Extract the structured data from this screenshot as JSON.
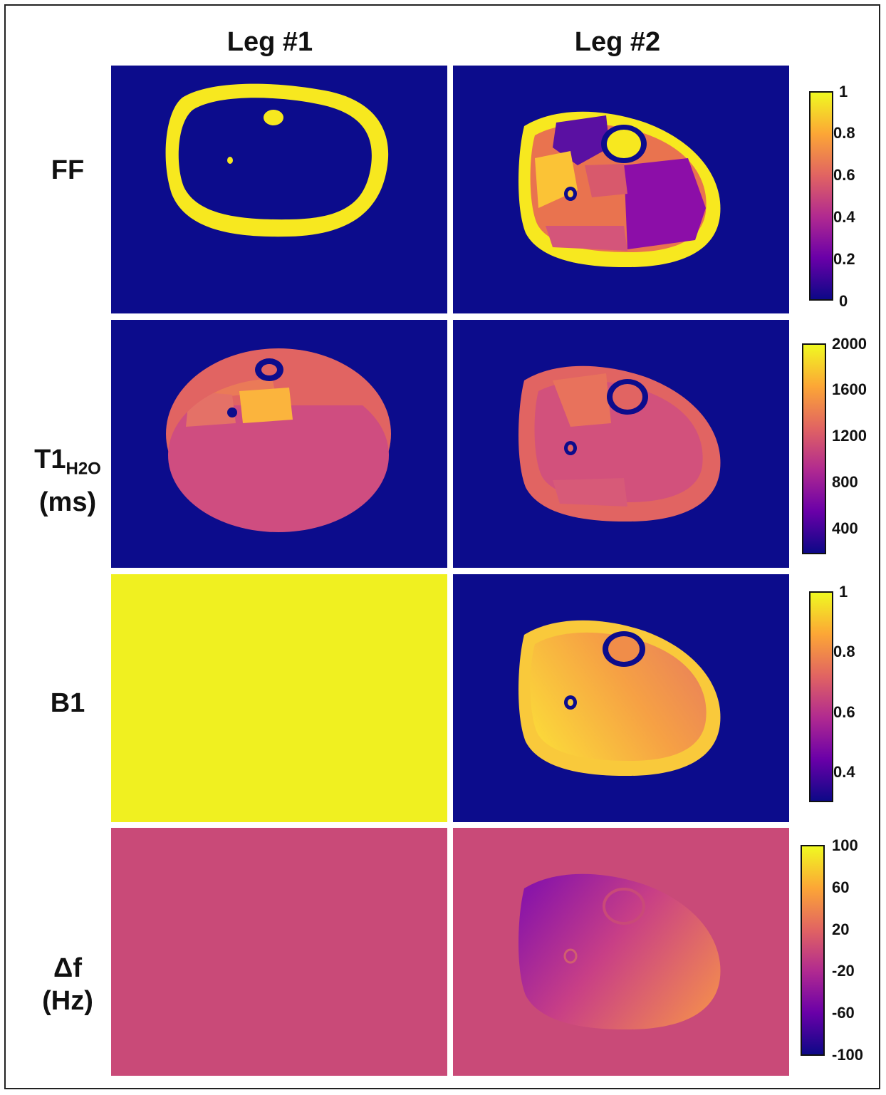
{
  "columns": [
    "Leg #1",
    "Leg #2"
  ],
  "rows": {
    "ff": {
      "label": "FF"
    },
    "t1": {
      "label_main": "T1",
      "label_sub": "H2O",
      "label_unit": "(ms)"
    },
    "b1": {
      "label": "B1"
    },
    "df": {
      "label_main": "Δf",
      "label_unit": "(Hz)"
    }
  },
  "colorbars": {
    "ff": {
      "ticks": [
        "1",
        "0.8",
        "0.6",
        "0.4",
        "0.2",
        "0"
      ]
    },
    "t1": {
      "ticks": [
        "2000",
        "1600",
        "1200",
        "800",
        "400"
      ]
    },
    "b1": {
      "ticks": [
        "1",
        "0.8",
        "0.6",
        "0.4"
      ]
    },
    "df": {
      "ticks": [
        "100",
        "60",
        "20",
        "-20",
        "-60",
        "-100"
      ]
    }
  },
  "colors": {
    "background_navy": "#0c0c8c",
    "yellow": "#f0f020",
    "fat_yellow": "#f7e81f",
    "df_background": "#c94a78",
    "colormap": [
      "#0d0887",
      "#6a00a8",
      "#b12a90",
      "#e16462",
      "#fca636",
      "#f0f921"
    ]
  },
  "icons": {
    "colorbar": "plasma-gradient-bar",
    "leg_map": "leg-cross-section-map"
  }
}
